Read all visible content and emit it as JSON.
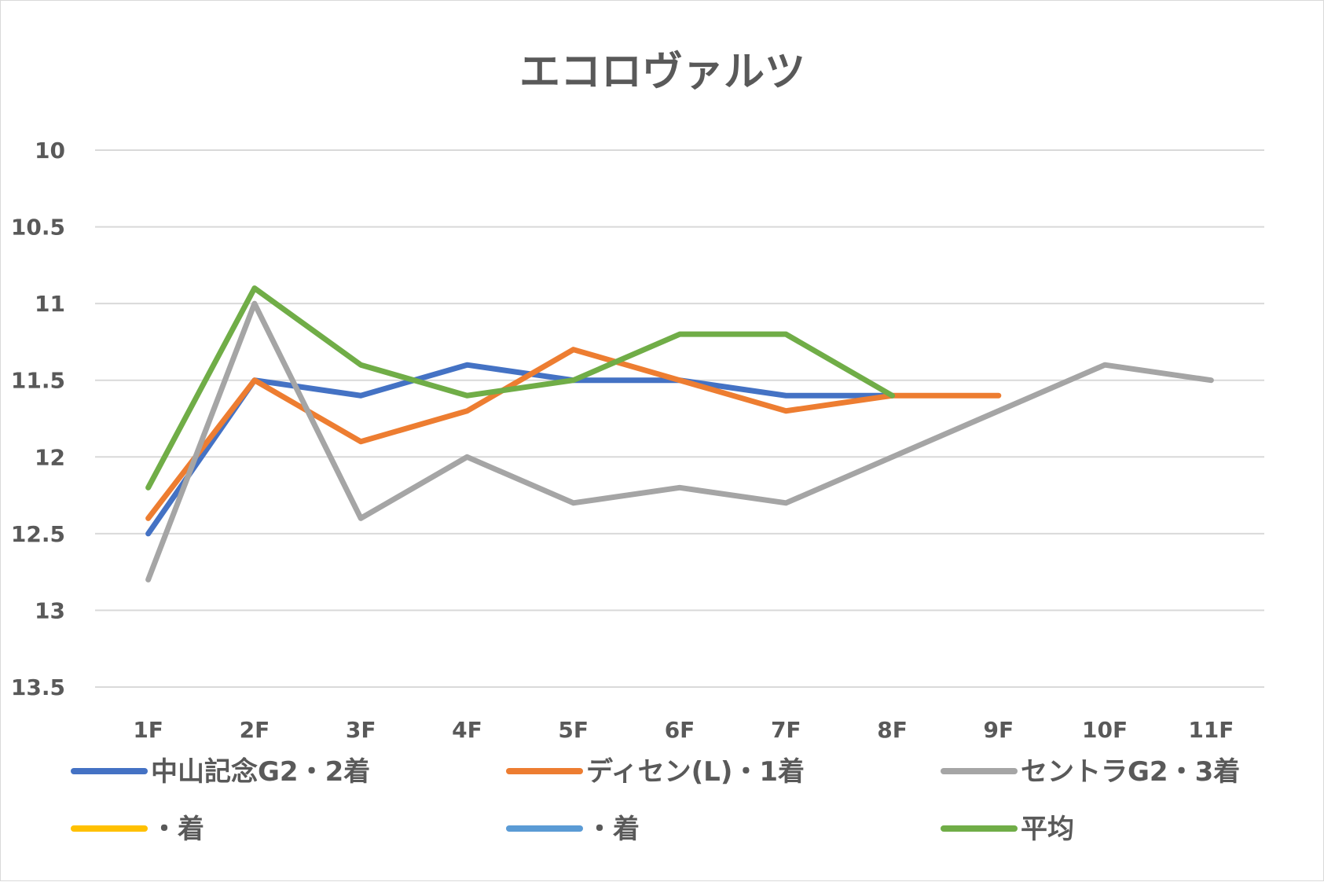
{
  "chart_data": {
    "type": "line",
    "title": "エコロヴァルツ",
    "xlabel": "",
    "ylabel": "",
    "categories": [
      "1F",
      "2F",
      "3F",
      "4F",
      "5F",
      "6F",
      "7F",
      "8F",
      "9F",
      "10F",
      "11F"
    ],
    "y_reversed": true,
    "ylim": [
      10,
      13.5
    ],
    "y_ticks": [
      "10",
      "10.5",
      "11",
      "11.5",
      "12",
      "12.5",
      "13",
      "13.5"
    ],
    "grid": true,
    "legend_position": "bottom",
    "series": [
      {
        "name": "中山記念G2・2着",
        "color": "#4472C4",
        "values": [
          12.5,
          11.5,
          11.6,
          11.4,
          11.5,
          11.5,
          11.6,
          11.6,
          null,
          null,
          null
        ]
      },
      {
        "name": "ディセン(L)・1着",
        "color": "#ED7D31",
        "values": [
          12.4,
          11.5,
          11.9,
          11.7,
          11.3,
          11.5,
          11.7,
          11.6,
          11.6,
          null,
          null
        ]
      },
      {
        "name": "セントラG2・3着",
        "color": "#A5A5A5",
        "values": [
          12.8,
          11.0,
          12.4,
          12.0,
          12.3,
          12.2,
          12.3,
          12.0,
          11.7,
          11.4,
          11.5
        ]
      },
      {
        "name": "・着",
        "color": "#FFC000",
        "values": [
          null,
          null,
          null,
          null,
          null,
          null,
          null,
          null,
          null,
          null,
          null
        ]
      },
      {
        "name": "・着",
        "color": "#5B9BD5",
        "values": [
          null,
          null,
          null,
          null,
          null,
          null,
          null,
          null,
          null,
          null,
          null
        ]
      },
      {
        "name": "平均",
        "color": "#70AD47",
        "values": [
          12.2,
          10.9,
          11.4,
          11.6,
          11.5,
          11.2,
          11.2,
          11.6,
          null,
          null,
          null
        ]
      }
    ]
  }
}
